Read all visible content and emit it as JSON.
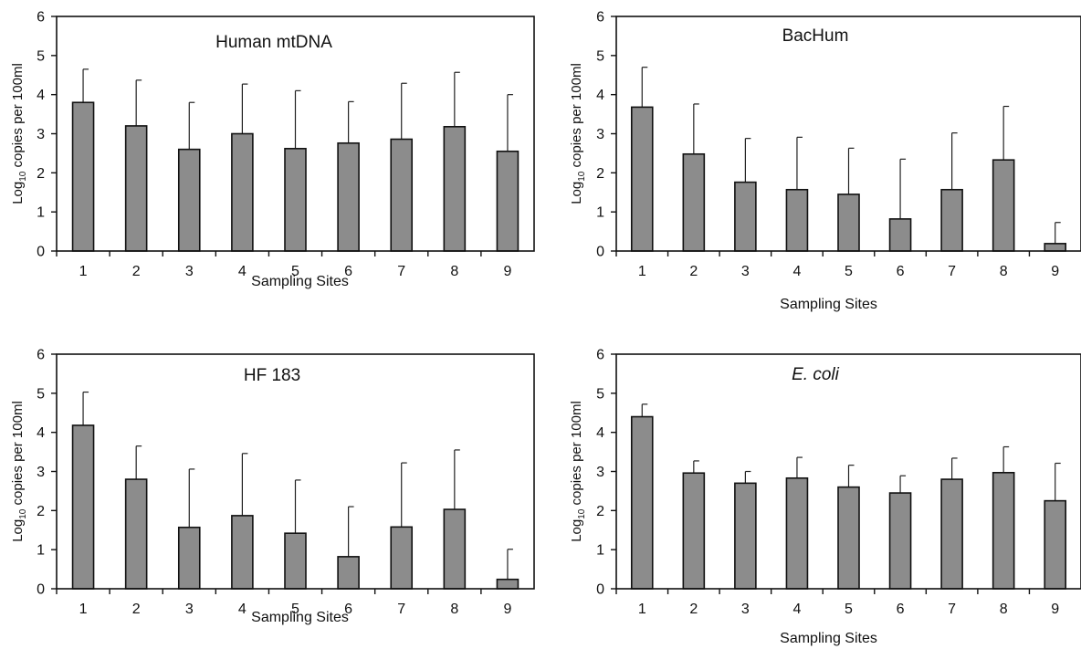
{
  "chart_data": [
    {
      "type": "bar",
      "title": "Human mtDNA",
      "title_italic": false,
      "xlabel": "Sampling Sites",
      "ylabel_main": "Log",
      "ylabel_sub": "10",
      "ylabel_rest": " copies per 100ml",
      "ylim": [
        0,
        6
      ],
      "yticks": [
        "0",
        "1",
        "2",
        "3",
        "4",
        "5",
        "6"
      ],
      "categories": [
        "1",
        "2",
        "3",
        "4",
        "5",
        "6",
        "7",
        "8",
        "9"
      ],
      "values": [
        3.8,
        3.2,
        2.6,
        3.0,
        2.62,
        2.76,
        2.86,
        3.18,
        2.55
      ],
      "error_upper": [
        4.65,
        4.37,
        3.8,
        4.27,
        4.1,
        3.82,
        4.29,
        4.57,
        4.0
      ],
      "bar_color": "#8c8c8c",
      "grid": false
    },
    {
      "type": "bar",
      "title": "BacHum",
      "title_italic": false,
      "xlabel": "Sampling Sites",
      "ylabel_main": "Log",
      "ylabel_sub": "10",
      "ylabel_rest": " copies per 100ml",
      "ylim": [
        0,
        6
      ],
      "yticks": [
        "0",
        "1",
        "2",
        "3",
        "4",
        "5",
        "6"
      ],
      "categories": [
        "1",
        "2",
        "3",
        "4",
        "5",
        "6",
        "7",
        "8",
        "9"
      ],
      "values": [
        3.68,
        2.48,
        1.76,
        1.57,
        1.45,
        0.82,
        1.57,
        2.33,
        0.19
      ],
      "error_upper": [
        4.7,
        3.76,
        2.88,
        2.91,
        2.63,
        2.35,
        3.02,
        3.7,
        0.73
      ],
      "bar_color": "#8c8c8c",
      "grid": false
    },
    {
      "type": "bar",
      "title": "HF 183",
      "title_italic": false,
      "xlabel": "Sampling Sites",
      "ylabel_main": "Log",
      "ylabel_sub": "10",
      "ylabel_rest": " copies per 100ml",
      "ylim": [
        0,
        6
      ],
      "yticks": [
        "0",
        "1",
        "2",
        "3",
        "4",
        "5",
        "6"
      ],
      "categories": [
        "1",
        "2",
        "3",
        "4",
        "5",
        "6",
        "7",
        "8",
        "9"
      ],
      "values": [
        4.18,
        2.8,
        1.57,
        1.87,
        1.42,
        0.82,
        1.58,
        2.03,
        0.24
      ],
      "error_upper": [
        5.03,
        3.65,
        3.06,
        3.46,
        2.78,
        2.1,
        3.22,
        3.55,
        1.01
      ],
      "bar_color": "#8c8c8c",
      "grid": false
    },
    {
      "type": "bar",
      "title": "E. coli",
      "title_italic": true,
      "xlabel": "Sampling Sites",
      "ylabel_main": "Log",
      "ylabel_sub": "10",
      "ylabel_rest": " copies per 100ml",
      "ylim": [
        0,
        6
      ],
      "yticks": [
        "0",
        "1",
        "2",
        "3",
        "4",
        "5",
        "6"
      ],
      "categories": [
        "1",
        "2",
        "3",
        "4",
        "5",
        "6",
        "7",
        "8",
        "9"
      ],
      "values": [
        4.4,
        2.96,
        2.7,
        2.83,
        2.6,
        2.45,
        2.8,
        2.97,
        2.25
      ],
      "error_upper": [
        4.72,
        3.27,
        3.0,
        3.36,
        3.16,
        2.89,
        3.34,
        3.63,
        3.21
      ],
      "bar_color": "#8c8c8c",
      "grid": false
    }
  ]
}
